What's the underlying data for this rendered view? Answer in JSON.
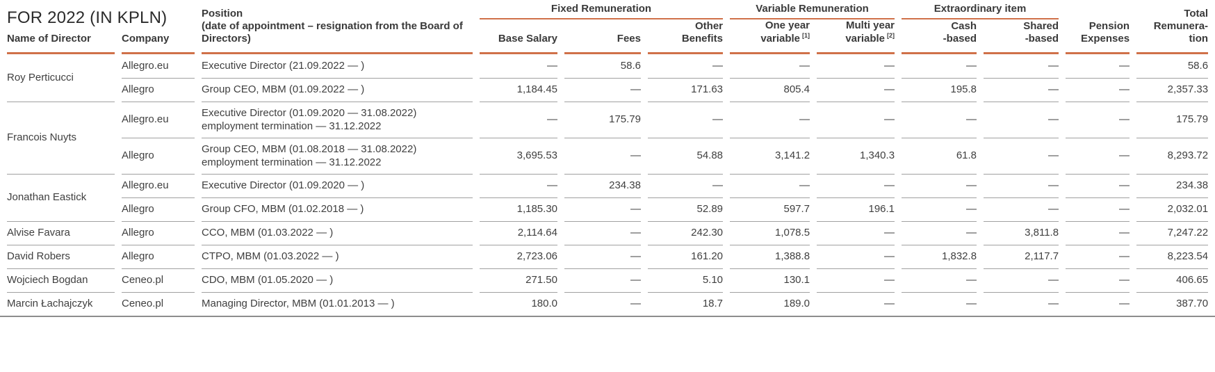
{
  "title": "FOR 2022 (IN KPLN)",
  "colors": {
    "accent": "#d07149",
    "row_line": "#a0a0a0",
    "bottom_line": "#8d8d8d"
  },
  "table": {
    "groups": {
      "fixed": "Fixed Remuneration",
      "variable": "Variable Remuneration",
      "extraordinary": "Extraordinary item"
    },
    "columns": {
      "name": "Name of Director",
      "company": "Company",
      "position": "Position\n(date of appointment – resignation from the Board of Directors)",
      "base_salary": "Base Salary",
      "fees": "Fees",
      "other_benefits": "Other\nBenefits",
      "one_year": "One year\nvariable",
      "one_year_sup": "[1]",
      "multi_year": "Multi year\nvariable",
      "multi_year_sup": "[2]",
      "cash_based": "Cash\n-based",
      "shared_based": "Shared\n-based",
      "pension": "Pension\nExpenses",
      "total": "Total\nRemunera-\ntion"
    },
    "directors": [
      {
        "name": "Roy Perticucci",
        "rows": [
          {
            "company": "Allegro.eu",
            "position": "Executive Director (21.09.2022 — )",
            "values": [
              "—",
              "58.6",
              "—",
              "—",
              "—",
              "—",
              "—",
              "—",
              "58.6"
            ]
          },
          {
            "company": "Allegro",
            "position": "Group CEO, MBM (01.09.2022 — )",
            "values": [
              "1,184.45",
              "—",
              "171.63",
              "805.4",
              "—",
              "195.8",
              "—",
              "—",
              "2,357.33"
            ]
          }
        ]
      },
      {
        "name": "Francois Nuyts",
        "rows": [
          {
            "company": "Allegro.eu",
            "position": "Executive Director (01.09.2020 — 31.08.2022)\nemployment termination — 31.12.2022",
            "values": [
              "—",
              "175.79",
              "—",
              "—",
              "—",
              "—",
              "—",
              "—",
              "175.79"
            ]
          },
          {
            "company": "Allegro",
            "position": "Group CEO, MBM (01.08.2018 — 31.08.2022)\nemployment termination — 31.12.2022",
            "values": [
              "3,695.53",
              "—",
              "54.88",
              "3,141.2",
              "1,340.3",
              "61.8",
              "—",
              "—",
              "8,293.72"
            ]
          }
        ]
      },
      {
        "name": "Jonathan Eastick",
        "rows": [
          {
            "company": "Allegro.eu",
            "position": "Executive Director (01.09.2020 — )",
            "values": [
              "—",
              "234.38",
              "—",
              "—",
              "—",
              "—",
              "—",
              "—",
              "234.38"
            ]
          },
          {
            "company": "Allegro",
            "position": "Group CFO, MBM (01.02.2018 — )",
            "values": [
              "1,185.30",
              "—",
              "52.89",
              "597.7",
              "196.1",
              "—",
              "—",
              "—",
              "2,032.01"
            ]
          }
        ]
      },
      {
        "name": "Alvise Favara",
        "rows": [
          {
            "company": "Allegro",
            "position": "CCO, MBM (01.03.2022 — )",
            "values": [
              "2,114.64",
              "—",
              "242.30",
              "1,078.5",
              "—",
              "—",
              "3,811.8",
              "—",
              "7,247.22"
            ]
          }
        ]
      },
      {
        "name": "David Robers",
        "rows": [
          {
            "company": "Allegro",
            "position": "CTPO, MBM (01.03.2022 — )",
            "values": [
              "2,723.06",
              "—",
              "161.20",
              "1,388.8",
              "—",
              "1,832.8",
              "2,117.7",
              "—",
              "8,223.54"
            ]
          }
        ]
      },
      {
        "name": "Wojciech Bogdan",
        "rows": [
          {
            "company": "Ceneo.pl",
            "position": "CDO, MBM (01.05.2020 — )",
            "values": [
              "271.50",
              "—",
              "5.10",
              "130.1",
              "—",
              "—",
              "—",
              "—",
              "406.65"
            ]
          }
        ]
      },
      {
        "name": "Marcin Łachajczyk",
        "rows": [
          {
            "company": "Ceneo.pl",
            "position": "Managing Director, MBM (01.01.2013 — )",
            "values": [
              "180.0",
              "—",
              "18.7",
              "189.0",
              "—",
              "—",
              "—",
              "—",
              "387.70"
            ]
          }
        ]
      }
    ]
  }
}
